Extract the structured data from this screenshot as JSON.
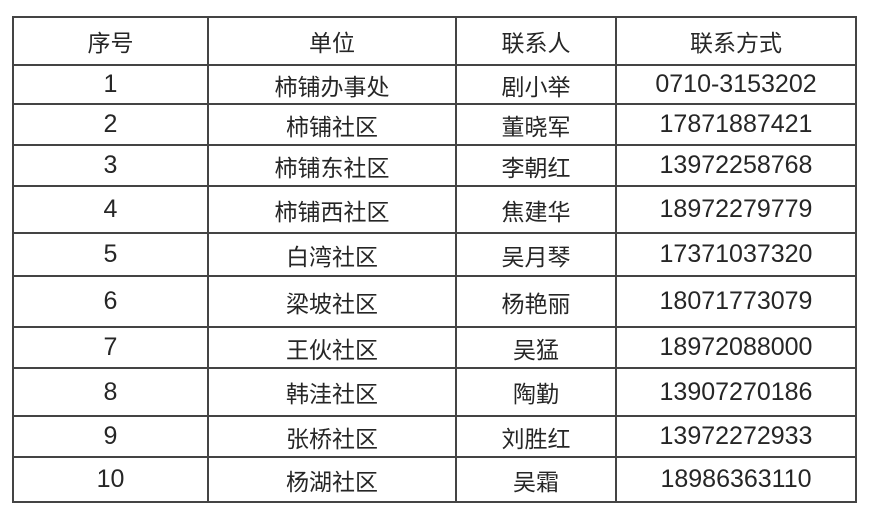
{
  "headers": [
    "序号",
    "单位",
    "联系人",
    "联系方式"
  ],
  "rows": [
    [
      "1",
      "柿铺办事处",
      "剧小举",
      "0710-3153202"
    ],
    [
      "2",
      "柿铺社区",
      "董晓军",
      "17871887421"
    ],
    [
      "3",
      "柿铺东社区",
      "李朝红",
      "13972258768"
    ],
    [
      "4",
      "柿铺西社区",
      "焦建华",
      "18972279779"
    ],
    [
      "5",
      "白湾社区",
      "吴月琴",
      "17371037320"
    ],
    [
      "6",
      "梁坡社区",
      "杨艳丽",
      "18071773079"
    ],
    [
      "7",
      "王伙社区",
      "吴猛",
      "18972088000"
    ],
    [
      "8",
      "韩洼社区",
      "陶勤",
      "13907270186"
    ],
    [
      "9",
      "张桥社区",
      "刘胜红",
      "13972272933"
    ],
    [
      "10",
      "杨湖社区",
      "吴霜",
      "18986363110"
    ]
  ]
}
